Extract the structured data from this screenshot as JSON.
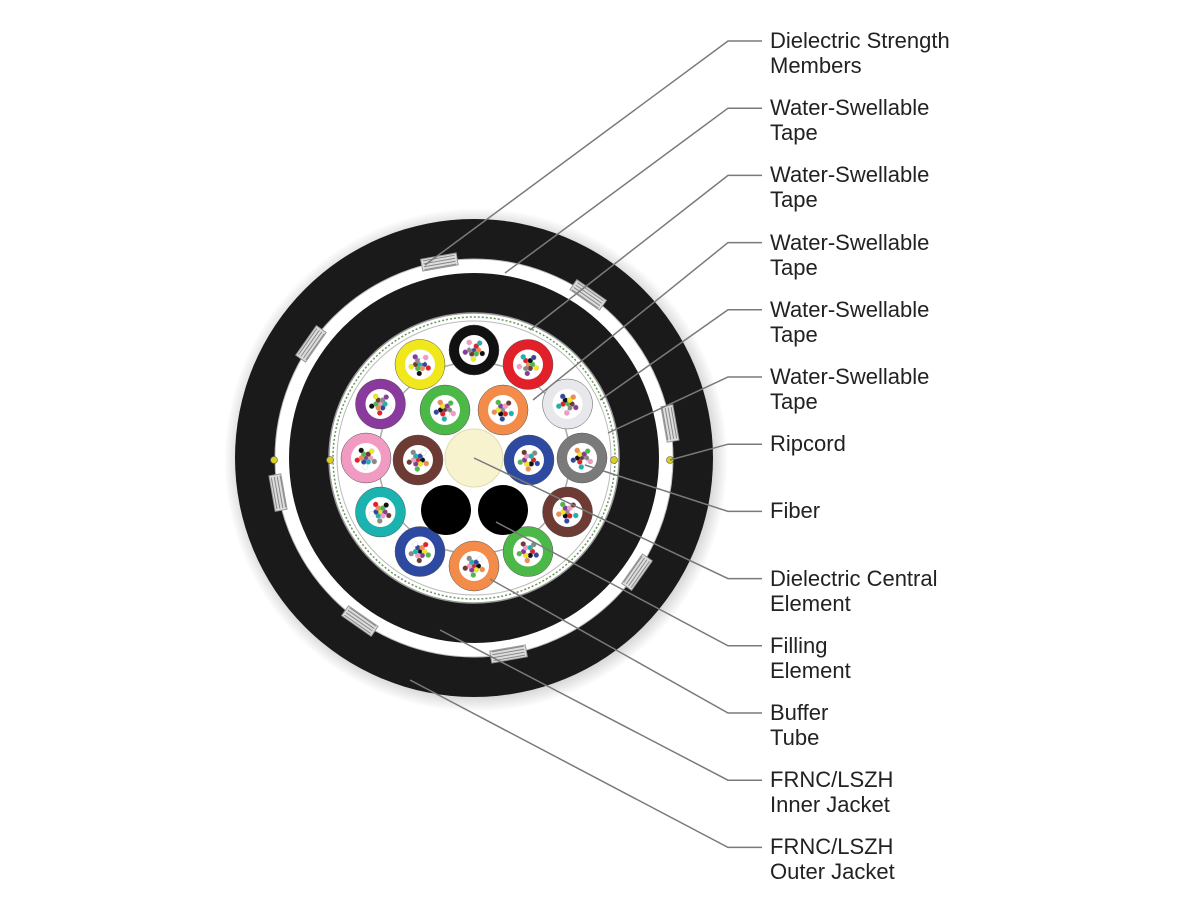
{
  "labels": [
    {
      "line1": "Dielectric Strength",
      "line2": "Members"
    },
    {
      "line1": "Water-Swellable",
      "line2": "Tape"
    },
    {
      "line1": "Water-Swellable",
      "line2": "Tape"
    },
    {
      "line1": "Water-Swellable",
      "line2": "Tape"
    },
    {
      "line1": "Water-Swellable",
      "line2": "Tape"
    },
    {
      "line1": "Water-Swellable",
      "line2": "Tape"
    },
    {
      "line1": "Ripcord",
      "line2": ""
    },
    {
      "line1": "Fiber",
      "line2": ""
    },
    {
      "line1": "Dielectric Central",
      "line2": "Element"
    },
    {
      "line1": "Filling",
      "line2": "Element"
    },
    {
      "line1": "Buffer",
      "line2": "Tube"
    },
    {
      "line1": "FRNC/LSZH",
      "line2": "Inner Jacket"
    },
    {
      "line1": "FRNC/LSZH",
      "line2": "Outer Jacket"
    }
  ],
  "colors": {
    "jacket": "#1a1a1a",
    "central_element": "#f7f3cf",
    "leader_line": "#7a7a7a",
    "ripcord": "#d8d020",
    "outer_tubes": [
      "#111111",
      "#e3202a",
      "#e8e8ec",
      "#7a7a7a",
      "#6e3b34",
      "#4cb848",
      "#f38b4a",
      "#2e4aa0",
      "#1ab3b0",
      "#f19ac2",
      "#8a3a9c",
      "#f0e81c"
    ],
    "inner_tubes": [
      "#4cb848",
      "#f38b4a",
      "#2e4aa0",
      "#6e3b34"
    ],
    "fibers": [
      "#2e4aa0",
      "#f38b4a",
      "#4cb848",
      "#6e3b34",
      "#888888",
      "#ffffff",
      "#e3202a",
      "#111111",
      "#f0e81c",
      "#8a3a9c",
      "#f19ac2",
      "#1ab3b0"
    ]
  }
}
